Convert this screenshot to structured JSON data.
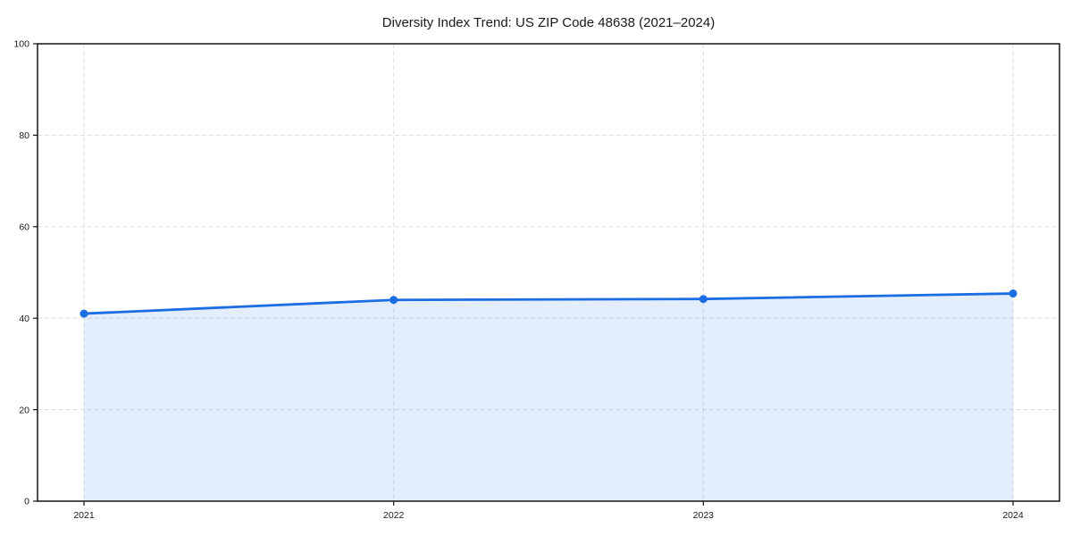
{
  "chart_data": {
    "type": "area",
    "title": "Diversity Index Trend: US ZIP Code 48638 (2021–2024)",
    "categories": [
      "2021",
      "2022",
      "2023",
      "2024"
    ],
    "series": [
      {
        "name": "Diversity Index",
        "values": [
          41.0,
          44.0,
          44.2,
          45.4
        ]
      }
    ],
    "xlabel": "",
    "ylabel": "",
    "ylim": [
      0,
      100
    ],
    "yticks": [
      0,
      20,
      40,
      60,
      80,
      100
    ],
    "grid": "dashed-both-axes",
    "legend_position": "none",
    "marker": "circle",
    "colors": {
      "line": "#1b6de2",
      "marker": "#1b6de2",
      "fill": "#1b6de2",
      "fill_opacity": 0.12,
      "grid": "#e0e0e0",
      "spine": "#141414",
      "text": "#1a1a1a",
      "background": "#ffffff"
    }
  }
}
